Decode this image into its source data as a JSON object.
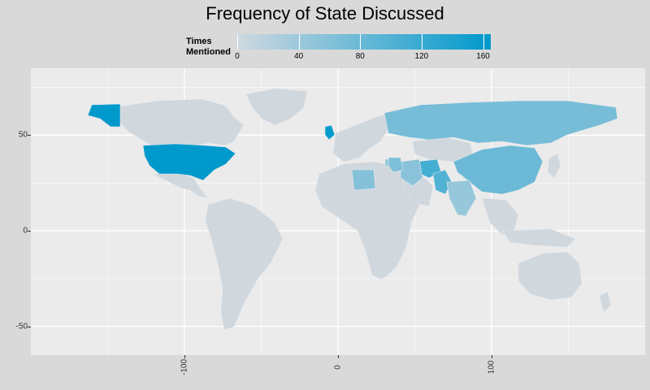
{
  "title": "Frequency of State Discussed",
  "legend": {
    "title_line1": "Times",
    "title_line2": "Mentioned",
    "ticks": [
      "0",
      "40",
      "80",
      "120",
      "160"
    ],
    "tick_values": [
      0,
      40,
      80,
      120,
      160
    ],
    "min": 0,
    "max": 165,
    "color_low": "#cfd8e0",
    "color_high": "#0099cc"
  },
  "axes": {
    "y_ticks": [
      "50",
      "0",
      "-50"
    ],
    "y_tick_values": [
      50,
      0,
      -50
    ],
    "x_ticks": [
      "-100",
      "0",
      "100"
    ],
    "x_tick_values": [
      -100,
      0,
      100
    ],
    "lon_range": [
      -200,
      200
    ],
    "lat_range": [
      -65,
      85
    ]
  },
  "map": {
    "background": "#ebebeb",
    "gridline_color": "#ffffff",
    "default_country_color": "#d0d7dd",
    "highlighted_countries": [
      {
        "name": "United States",
        "value": 165
      },
      {
        "name": "Alaska",
        "value": 165
      },
      {
        "name": "United Kingdom",
        "value": 160
      },
      {
        "name": "Afghanistan",
        "value": 110
      },
      {
        "name": "Pakistan",
        "value": 100
      },
      {
        "name": "China",
        "value": 80
      },
      {
        "name": "Russia",
        "value": 70
      },
      {
        "name": "Iraq",
        "value": 65
      },
      {
        "name": "Libya",
        "value": 60
      },
      {
        "name": "Iran",
        "value": 55
      },
      {
        "name": "India",
        "value": 45
      },
      {
        "name": "Israel",
        "value": 50
      }
    ]
  }
}
